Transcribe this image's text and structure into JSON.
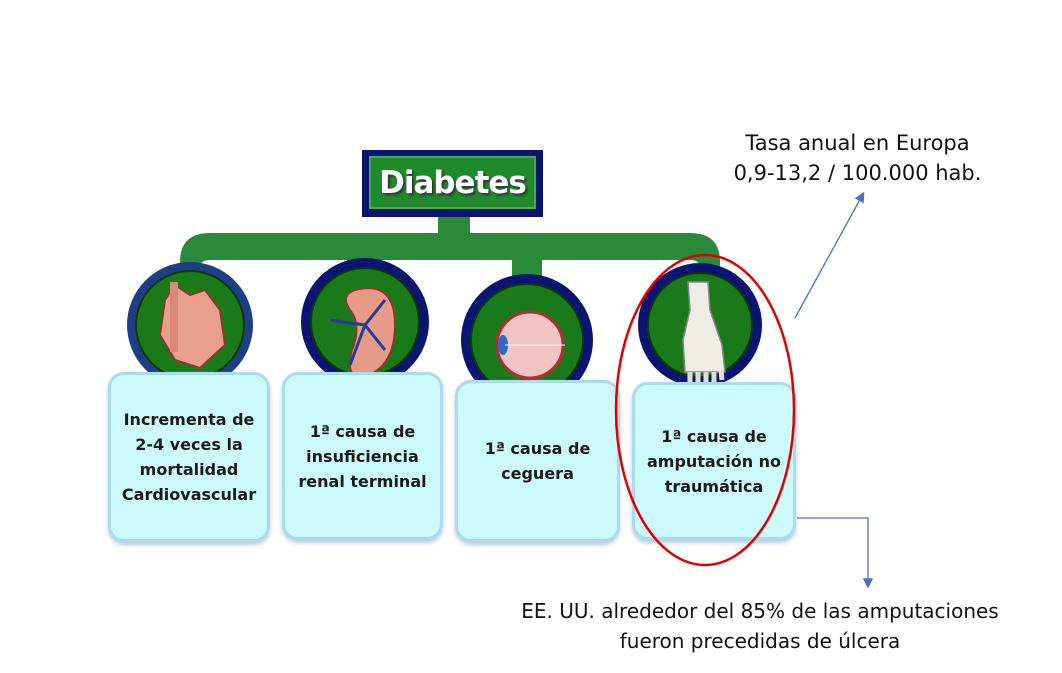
{
  "diagram": {
    "root": "Diabetes",
    "items": [
      {
        "icon": "heart-icon",
        "text": "Incrementa de\n2-4 veces  la\nmortalidad\nCardiovascular"
      },
      {
        "icon": "kidney-icon",
        "text": "1ª causa de\ninsuficiencia\nrenal terminal"
      },
      {
        "icon": "eye-icon",
        "text": "1ª causa de\nceguera"
      },
      {
        "icon": "foot-icon",
        "text": "1ª causa de\namputación no\ntraumática"
      }
    ],
    "annotations": {
      "top_line1": "Tasa anual en Europa",
      "top_line2": "0,9-13,2 / 100.000 hab.",
      "bottom_line1": "EE. UU. alrededor del 85% de las amputaciones",
      "bottom_line2": "fueron precedidas de úlcera"
    },
    "colors": {
      "green": "#1f8a2c",
      "navy": "#0b1470",
      "box": "#cdfbfd",
      "highlight": "#e00000",
      "arrow": "#4a72c4"
    }
  }
}
